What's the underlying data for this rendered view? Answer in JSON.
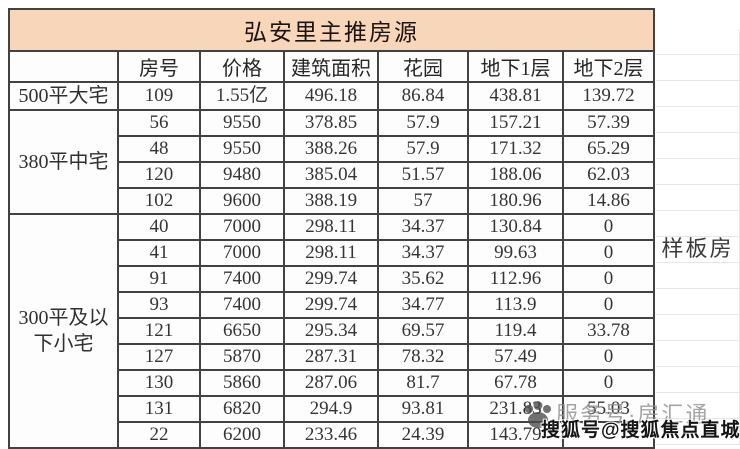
{
  "title": "弘安里主推房源",
  "columns": [
    "房号",
    "价格",
    "建筑面积",
    "花园",
    "地下1层",
    "地下2层"
  ],
  "corner_label": "",
  "groups": [
    {
      "label": "500平大宅",
      "rows": [
        [
          "109",
          "1.55亿",
          "496.18",
          "86.84",
          "438.81",
          "139.72"
        ]
      ]
    },
    {
      "label": "380平中宅",
      "rows": [
        [
          "56",
          "9550",
          "378.85",
          "57.9",
          "157.21",
          "57.39"
        ],
        [
          "48",
          "9550",
          "388.26",
          "57.9",
          "171.32",
          "65.29"
        ],
        [
          "120",
          "9480",
          "385.04",
          "51.57",
          "188.06",
          "62.03"
        ],
        [
          "102",
          "9600",
          "388.19",
          "57",
          "180.96",
          "14.86"
        ]
      ]
    },
    {
      "label": "300平及以下小宅",
      "rows": [
        [
          "40",
          "7000",
          "298.11",
          "34.37",
          "130.84",
          "0"
        ],
        [
          "41",
          "7000",
          "298.11",
          "34.37",
          "99.63",
          "0"
        ],
        [
          "91",
          "7400",
          "299.74",
          "35.62",
          "112.96",
          "0"
        ],
        [
          "93",
          "7400",
          "299.74",
          "34.77",
          "113.9",
          "0"
        ],
        [
          "121",
          "6650",
          "295.34",
          "69.57",
          "119.4",
          "33.78"
        ],
        [
          "127",
          "5870",
          "287.31",
          "78.32",
          "57.49",
          "0"
        ],
        [
          "130",
          "5860",
          "287.06",
          "81.7",
          "67.78",
          "0"
        ],
        [
          "131",
          "6820",
          "294.9",
          "93.81",
          "231.83",
          "55.03"
        ],
        [
          "22",
          "6200",
          "233.46",
          "24.39",
          "143.79",
          ""
        ]
      ]
    }
  ],
  "side_note": "样板房",
  "watermarks": {
    "gray_text": "服务号·房汇通",
    "dark_text": "搜狐号@搜狐焦点直城站",
    "icon": "paw-print-icon"
  },
  "colors": {
    "title_bg": "#f8d6ba",
    "border": "#424242",
    "text": "#353535",
    "faint_grid": "#e6e6e6",
    "watermark_gray": "#8f8f8f",
    "watermark_dark": "#141414"
  }
}
